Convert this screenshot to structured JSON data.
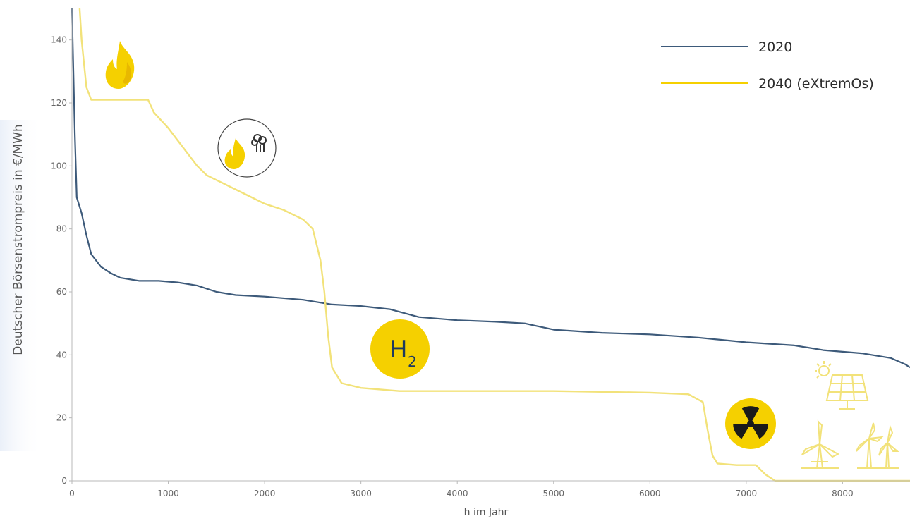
{
  "chart_data": {
    "type": "line",
    "title": "",
    "xlabel": "h im Jahr",
    "ylabel": "Deutscher Börsenstrompreis in €/MWh",
    "xlim": [
      0,
      8700
    ],
    "ylim": [
      0,
      150
    ],
    "xticks": [
      0,
      1000,
      2000,
      3000,
      4000,
      5000,
      6000,
      7000,
      8000
    ],
    "yticks": [
      0,
      20,
      40,
      60,
      80,
      100,
      120,
      140
    ],
    "grid": false,
    "legend_position": "top-right",
    "series": [
      {
        "name": "2020",
        "color": "#3d5a7a",
        "points": [
          [
            0,
            150
          ],
          [
            30,
            110
          ],
          [
            50,
            90
          ],
          [
            100,
            85
          ],
          [
            150,
            78
          ],
          [
            200,
            72
          ],
          [
            300,
            68
          ],
          [
            400,
            66
          ],
          [
            500,
            64.5
          ],
          [
            700,
            63.5
          ],
          [
            900,
            63.5
          ],
          [
            1100,
            63
          ],
          [
            1300,
            62
          ],
          [
            1500,
            60
          ],
          [
            1700,
            59
          ],
          [
            2000,
            58.5
          ],
          [
            2400,
            57.5
          ],
          [
            2700,
            56
          ],
          [
            3000,
            55.5
          ],
          [
            3300,
            54.5
          ],
          [
            3600,
            52
          ],
          [
            4000,
            51
          ],
          [
            4400,
            50.5
          ],
          [
            4700,
            50
          ],
          [
            5000,
            48
          ],
          [
            5500,
            47
          ],
          [
            6000,
            46.5
          ],
          [
            6500,
            45.5
          ],
          [
            7000,
            44
          ],
          [
            7500,
            43
          ],
          [
            7800,
            41.5
          ],
          [
            8200,
            40.5
          ],
          [
            8500,
            39
          ],
          [
            8650,
            37
          ],
          [
            8700,
            36
          ]
        ]
      },
      {
        "name": "2040 (eXtremOs)",
        "color": "#f2e27a",
        "points": [
          [
            80,
            150
          ],
          [
            100,
            140
          ],
          [
            150,
            125
          ],
          [
            200,
            121
          ],
          [
            400,
            121
          ],
          [
            790,
            121
          ],
          [
            850,
            117
          ],
          [
            1000,
            112
          ],
          [
            1100,
            108
          ],
          [
            1200,
            104
          ],
          [
            1300,
            100
          ],
          [
            1400,
            97
          ],
          [
            1600,
            94
          ],
          [
            1800,
            91
          ],
          [
            2000,
            88
          ],
          [
            2200,
            86
          ],
          [
            2400,
            83
          ],
          [
            2500,
            80
          ],
          [
            2580,
            70
          ],
          [
            2620,
            60
          ],
          [
            2660,
            46
          ],
          [
            2700,
            36
          ],
          [
            2800,
            31
          ],
          [
            3000,
            29.5
          ],
          [
            3400,
            28.5
          ],
          [
            4000,
            28.5
          ],
          [
            5000,
            28.5
          ],
          [
            6000,
            28
          ],
          [
            6400,
            27.5
          ],
          [
            6550,
            25
          ],
          [
            6600,
            16
          ],
          [
            6650,
            8
          ],
          [
            6700,
            5.5
          ],
          [
            6900,
            5
          ],
          [
            7100,
            5
          ],
          [
            7200,
            2
          ],
          [
            7300,
            0
          ],
          [
            8700,
            0
          ]
        ]
      }
    ]
  },
  "icons": {
    "fire_icon": "fire-icon",
    "gas_fire_icon": "gas-fire-icon",
    "h2_label_main": "H",
    "h2_label_sub": "2",
    "nuclear_icon": "nuclear-icon",
    "solar_icon": "solar-panel-icon",
    "wind_icon": "wind-turbine-icon",
    "yellow": "#f5d000",
    "light_yellow": "#f2e27a",
    "navy": "#1e3a5f"
  }
}
